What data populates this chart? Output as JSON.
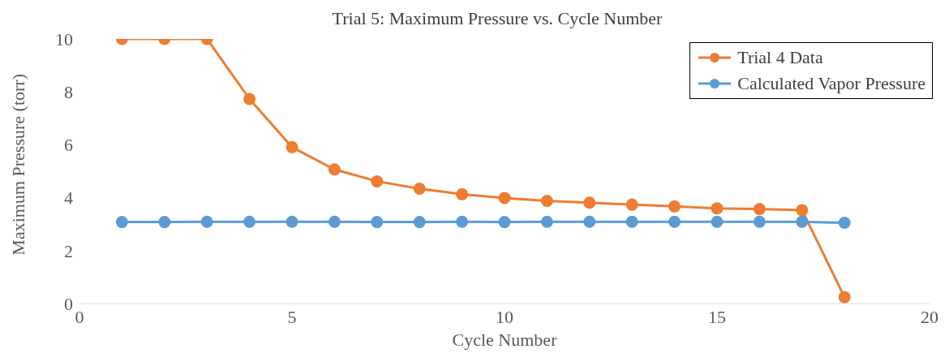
{
  "chart_data": {
    "type": "line",
    "title": "Trial 5: Maximum Pressure vs. Cycle Number",
    "xlabel": "Cycle Number",
    "ylabel": "Maximum Pressure (torr)",
    "x": [
      1,
      2,
      3,
      4,
      5,
      6,
      7,
      8,
      9,
      10,
      11,
      12,
      13,
      14,
      15,
      16,
      17,
      18
    ],
    "series": [
      {
        "name": "Trial 4 Data",
        "color": "#ed7d31",
        "values": [
          10,
          10,
          10,
          7.73,
          5.91,
          5.07,
          4.62,
          4.34,
          4.13,
          3.99,
          3.88,
          3.81,
          3.74,
          3.67,
          3.6,
          3.57,
          3.53,
          0.24
        ]
      },
      {
        "name": "Calculated Vapor Pressure",
        "color": "#5b9bd5",
        "values": [
          3.08,
          3.08,
          3.09,
          3.09,
          3.09,
          3.09,
          3.08,
          3.08,
          3.09,
          3.08,
          3.09,
          3.09,
          3.09,
          3.09,
          3.09,
          3.09,
          3.09,
          3.05
        ]
      }
    ],
    "xlim": [
      0,
      20
    ],
    "xticks": [
      0,
      5,
      10,
      15,
      20
    ],
    "ylim": [
      0,
      10
    ],
    "yticks": [
      0,
      2,
      4,
      6,
      8,
      10
    ],
    "grid": false,
    "legend": "top right",
    "marker": "circle",
    "line_style": "solid"
  }
}
